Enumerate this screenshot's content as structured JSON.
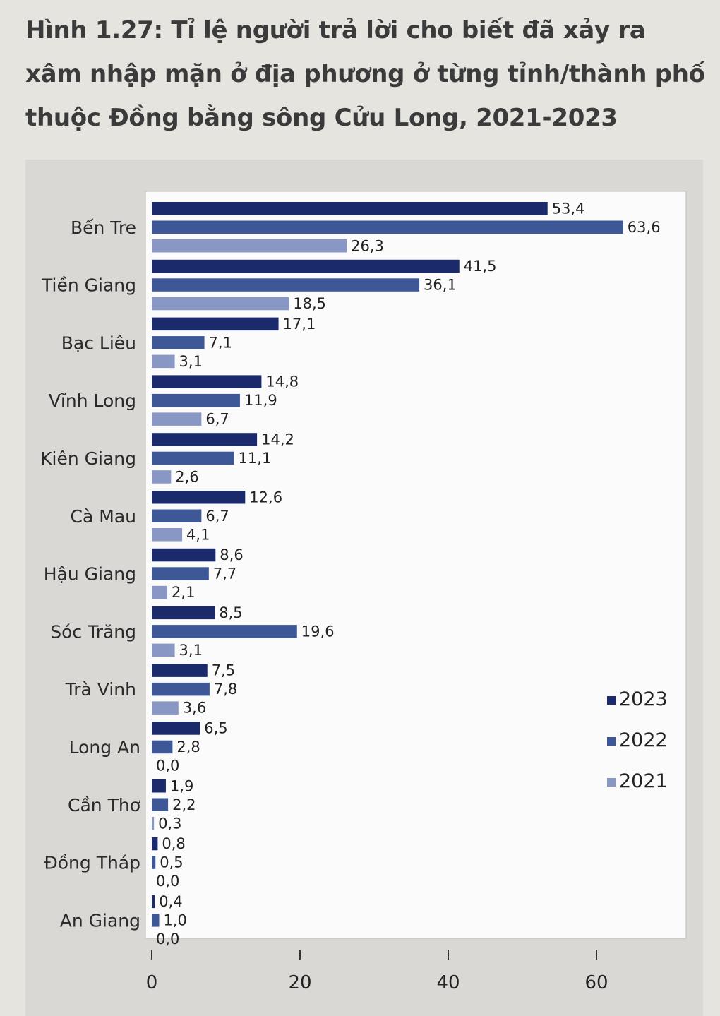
{
  "title": "Hình 1.27: Tỉ lệ người trả lời cho biết đã xảy ra xâm nhập mặn ở địa phương ở từng tỉnh/thành phố thuộc Đồng bằng sông Cửu Long, 2021-2023",
  "chart_data": {
    "type": "bar",
    "orientation": "horizontal",
    "title": "Hình 1.27: Tỉ lệ người trả lời cho biết đã xảy ra xâm nhập mặn ở địa phương ở từng tỉnh/thành phố thuộc Đồng bằng sông Cửu Long, 2021-2023",
    "categories": [
      "Bến Tre",
      "Tiền Giang",
      "Bạc Liêu",
      "Vĩnh Long",
      "Kiên Giang",
      "Cà Mau",
      "Hậu Giang",
      "Sóc Trăng",
      "Trà Vinh",
      "Long An",
      "Cần Thơ",
      "Đồng Tháp",
      "An Giang"
    ],
    "series": [
      {
        "name": "2023",
        "color": "#1b2a6b",
        "values": [
          53.4,
          41.5,
          17.1,
          14.8,
          14.2,
          12.6,
          8.6,
          8.5,
          7.5,
          6.5,
          1.9,
          0.8,
          0.4
        ],
        "labels": [
          "53,4",
          "41,5",
          "17,1",
          "14,8",
          "14,2",
          "12,6",
          "8,6",
          "8,5",
          "7,5",
          "6,5",
          "1,9",
          "0,8",
          "0,4"
        ]
      },
      {
        "name": "2022",
        "color": "#3e5797",
        "values": [
          63.6,
          36.1,
          7.1,
          11.9,
          11.1,
          6.7,
          7.7,
          19.6,
          7.8,
          2.8,
          2.2,
          0.5,
          1.0
        ],
        "labels": [
          "63,6",
          "36,1",
          "7,1",
          "11,9",
          "11,1",
          "6,7",
          "7,7",
          "19,6",
          "7,8",
          "2,8",
          "2,2",
          "0,5",
          "1,0"
        ]
      },
      {
        "name": "2021",
        "color": "#8897c4",
        "values": [
          26.3,
          18.5,
          3.1,
          6.7,
          2.6,
          4.1,
          2.1,
          3.1,
          3.6,
          0.0,
          0.3,
          0.0,
          0.0
        ],
        "labels": [
          "26,3",
          "18,5",
          "3,1",
          "6,7",
          "2,6",
          "4,1",
          "2,1",
          "3,1",
          "3,6",
          "0,0",
          "0,3",
          "0,0",
          "0,0"
        ]
      }
    ],
    "xlim": [
      0,
      65
    ],
    "x_ticks": [
      "0",
      "20",
      "40",
      "60"
    ],
    "x_tick_values": [
      0,
      20,
      40,
      60
    ],
    "legend": {
      "placement": "right",
      "entries": [
        "2023",
        "2022",
        "2021"
      ]
    },
    "grid": false
  }
}
